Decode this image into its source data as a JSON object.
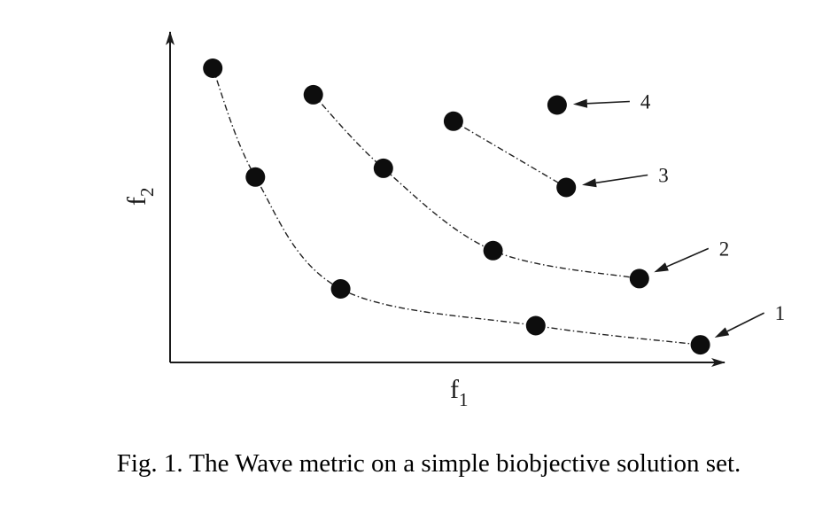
{
  "figure": {
    "caption": "Fig. 1. The Wave metric on a simple biobjective solution set."
  },
  "chart_data": {
    "type": "scatter",
    "xlabel": {
      "base": "f",
      "sub": "1"
    },
    "ylabel": {
      "base": "f",
      "sub": "2"
    },
    "xlim": [
      0,
      10
    ],
    "ylim": [
      0,
      10
    ],
    "grid": false,
    "legend": "none",
    "colors": {
      "points": "#0d0d0d",
      "lines": "#222222"
    },
    "series": [
      {
        "label": "1",
        "x": [
          0.7,
          1.4,
          2.8,
          6.0,
          8.7
        ],
        "y": [
          10.0,
          6.3,
          2.5,
          1.25,
          0.6
        ]
      },
      {
        "label": "2",
        "x": [
          2.35,
          3.5,
          5.3,
          7.7
        ],
        "y": [
          9.1,
          6.6,
          3.8,
          2.85
        ]
      },
      {
        "label": "3",
        "x": [
          4.65,
          6.5
        ],
        "y": [
          8.2,
          5.95
        ]
      },
      {
        "label": "4",
        "x": [
          6.35
        ],
        "y": [
          8.75
        ]
      }
    ]
  }
}
